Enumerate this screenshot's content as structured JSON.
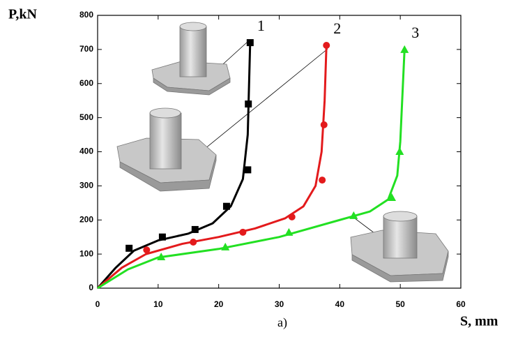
{
  "chart_data": {
    "type": "line",
    "y_label": "P,kN",
    "x_label": "S, mm",
    "caption": "a)",
    "xlim": [
      0,
      60
    ],
    "xticks": [
      0,
      10,
      20,
      30,
      40,
      50,
      60
    ],
    "ylim": [
      0,
      800
    ],
    "yticks": [
      0,
      100,
      200,
      300,
      400,
      500,
      600,
      700,
      800
    ],
    "series": [
      {
        "name": "1",
        "color": "#000000",
        "marker": "square",
        "x": [
          5.2,
          10.7,
          16.1,
          21.3,
          24.8,
          24.9,
          25.2
        ],
        "values": [
          117,
          150,
          172,
          240,
          347,
          540,
          720
        ],
        "curve_x": [
          0,
          3,
          6,
          10,
          15,
          19,
          22,
          24,
          24.8,
          25.2
        ],
        "curve_values": [
          0,
          60,
          110,
          140,
          160,
          190,
          240,
          320,
          450,
          720
        ]
      },
      {
        "name": "2",
        "color": "#e31a1c",
        "marker": "circle",
        "x": [
          8.1,
          15.8,
          24,
          32.1,
          37.1,
          37.4,
          37.8
        ],
        "values": [
          112,
          135,
          164,
          209,
          317,
          479,
          712
        ],
        "curve_x": [
          0,
          4,
          8,
          14,
          20,
          26,
          31,
          34,
          36,
          37,
          37.5,
          37.8
        ],
        "curve_values": [
          0,
          60,
          100,
          130,
          150,
          175,
          205,
          240,
          300,
          400,
          550,
          712
        ]
      },
      {
        "name": "3",
        "color": "#22e022",
        "marker": "triangle",
        "x": [
          10.5,
          21.1,
          31.6,
          42.3,
          48.6,
          49.9,
          50.7
        ],
        "values": [
          92,
          121,
          164,
          213,
          266,
          401,
          700
        ],
        "curve_x": [
          0,
          5,
          10,
          20,
          30,
          40,
          45,
          48,
          49.5,
          50,
          50.7
        ],
        "curve_values": [
          0,
          55,
          90,
          115,
          150,
          200,
          225,
          260,
          330,
          430,
          700
        ]
      }
    ]
  }
}
